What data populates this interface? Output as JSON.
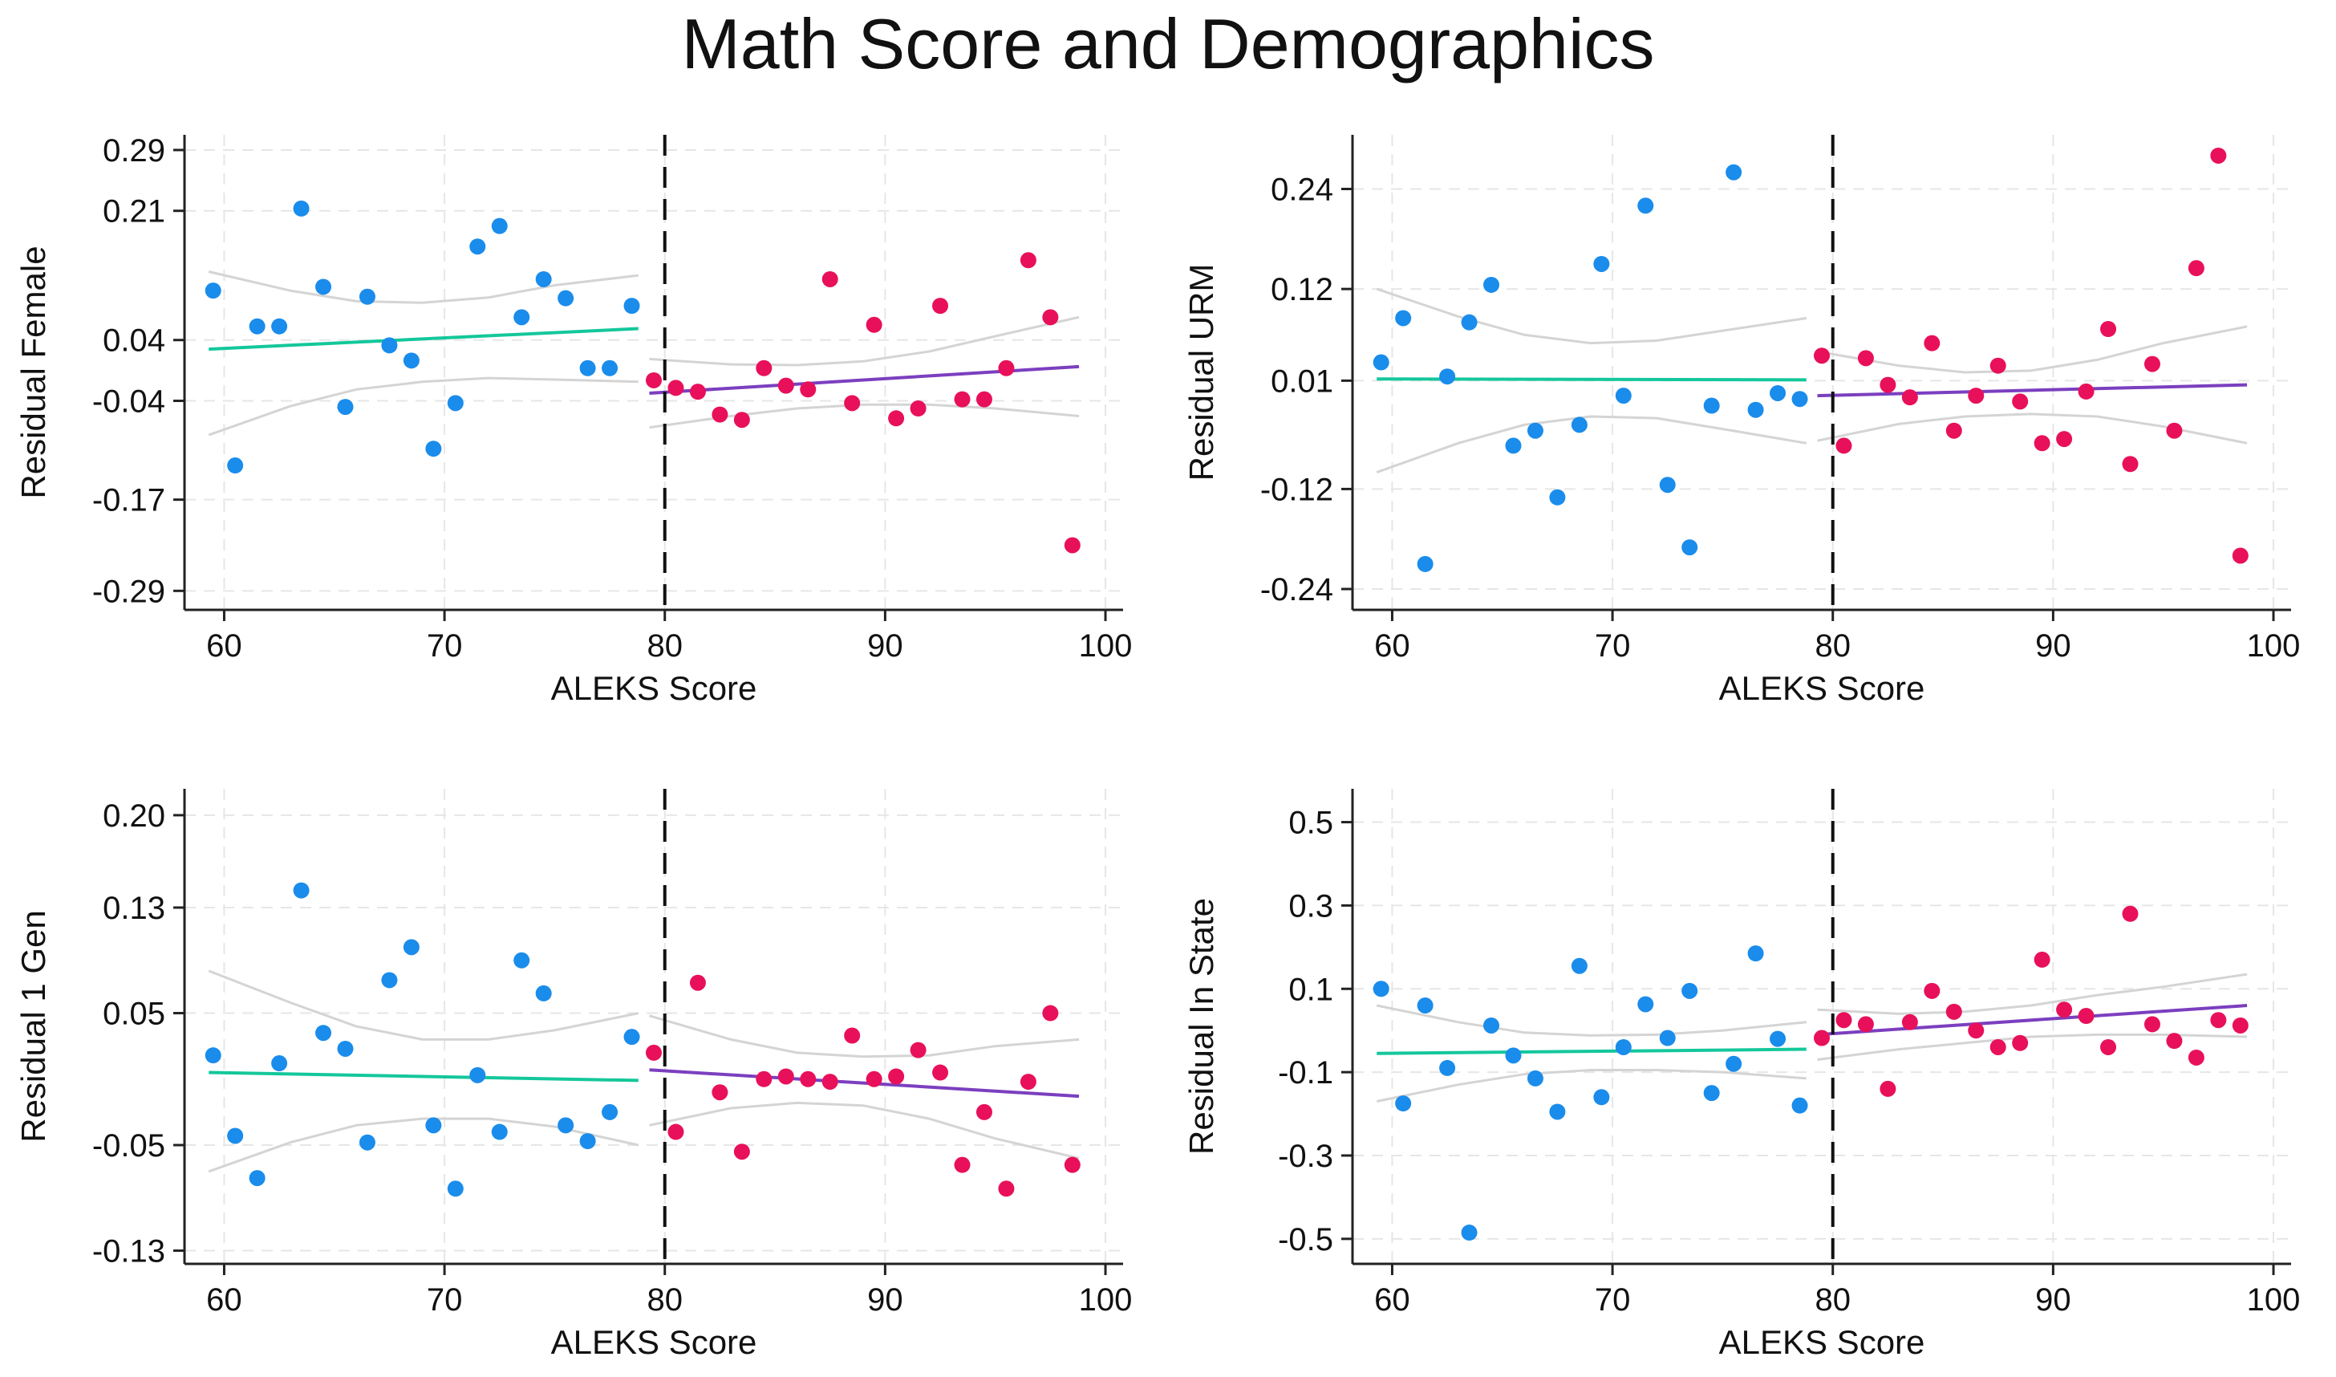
{
  "title": "Math Score and Demographics",
  "colors": {
    "left_points": "#1a8ceb",
    "right_points": "#e8105a",
    "left_fit": "#14c79b",
    "right_fit": "#7b3fbf",
    "ci": "#d4d4d4",
    "grid": "#e6e6e6",
    "axis": "#222222"
  },
  "chart_data": [
    {
      "type": "scatter",
      "title": "",
      "xlabel": "ALEKS Score",
      "ylabel": "Residual Female",
      "xlim": [
        58.2,
        100.8
      ],
      "ylim": [
        -0.315,
        0.31
      ],
      "xticks": [
        60,
        70,
        80,
        90,
        100
      ],
      "xtick_labels": [
        "60",
        "70",
        "80",
        "90",
        "100"
      ],
      "yticks": [
        0.29,
        0.21,
        0.04,
        -0.04,
        -0.17,
        -0.29
      ],
      "ytick_labels": [
        "0.29",
        "0.21",
        "0.04",
        "-0.04",
        "-0.17",
        "-0.29"
      ],
      "grid": true,
      "cutoff": 80,
      "left_points": {
        "x": [
          59.5,
          60.5,
          61.5,
          62.5,
          63.5,
          64.5,
          65.5,
          66.5,
          67.5,
          68.5,
          69.5,
          70.5,
          71.5,
          72.5,
          73.5,
          74.5,
          75.5,
          76.5,
          77.5,
          78.5
        ],
        "y": [
          0.105,
          -0.125,
          0.058,
          0.058,
          0.213,
          0.11,
          -0.048,
          0.097,
          0.033,
          0.013,
          -0.103,
          -0.043,
          0.163,
          0.19,
          0.07,
          0.12,
          0.095,
          0.003,
          0.003,
          0.085
        ]
      },
      "right_points": {
        "x": [
          79.5,
          80.5,
          81.5,
          82.5,
          83.5,
          84.5,
          85.5,
          86.5,
          87.5,
          88.5,
          89.5,
          90.5,
          91.5,
          92.5,
          93.5,
          94.5,
          95.5,
          96.5,
          97.5,
          98.5
        ],
        "y": [
          -0.013,
          -0.023,
          -0.028,
          -0.058,
          -0.065,
          0.003,
          -0.02,
          -0.025,
          0.12,
          -0.043,
          0.06,
          -0.063,
          -0.05,
          0.085,
          -0.038,
          -0.038,
          0.003,
          0.145,
          0.07,
          -0.23
        ]
      },
      "left_fit": {
        "x": [
          59.3,
          78.8
        ],
        "y": [
          0.028,
          0.055
        ]
      },
      "right_fit": {
        "x": [
          79.3,
          98.8
        ],
        "y": [
          -0.03,
          0.005
        ]
      },
      "left_ci_upper": {
        "x": [
          59.3,
          63,
          66,
          69,
          72,
          75,
          78.8
        ],
        "y": [
          0.13,
          0.105,
          0.091,
          0.089,
          0.096,
          0.112,
          0.125
        ]
      },
      "left_ci_lower": {
        "x": [
          59.3,
          63,
          66,
          69,
          72,
          75,
          78.8
        ],
        "y": [
          -0.085,
          -0.047,
          -0.025,
          -0.015,
          -0.01,
          -0.012,
          -0.015
        ]
      },
      "right_ci_upper": {
        "x": [
          79.3,
          83,
          86,
          89,
          92,
          95,
          98.8
        ],
        "y": [
          0.015,
          0.008,
          0.007,
          0.012,
          0.025,
          0.045,
          0.07
        ]
      },
      "right_ci_lower": {
        "x": [
          79.3,
          83,
          86,
          89,
          92,
          95,
          98.8
        ],
        "y": [
          -0.075,
          -0.06,
          -0.05,
          -0.045,
          -0.045,
          -0.05,
          -0.06
        ]
      }
    },
    {
      "type": "scatter",
      "title": "",
      "xlabel": "ALEKS Score",
      "ylabel": "Residual URM",
      "xlim": [
        58.2,
        100.8
      ],
      "ylim": [
        -0.265,
        0.305
      ],
      "xticks": [
        60,
        70,
        80,
        90,
        100
      ],
      "xtick_labels": [
        "60",
        "70",
        "80",
        "90",
        "100"
      ],
      "yticks": [
        0.24,
        0.12,
        0.01,
        -0.12,
        -0.24
      ],
      "ytick_labels": [
        "0.24",
        "0.12",
        "0.01",
        "-0.12",
        "-0.24"
      ],
      "grid": true,
      "cutoff": 80,
      "left_points": {
        "x": [
          59.5,
          60.5,
          61.5,
          62.5,
          63.5,
          64.5,
          65.5,
          66.5,
          67.5,
          68.5,
          69.5,
          70.5,
          71.5,
          72.5,
          73.5,
          74.5,
          75.5,
          76.5,
          77.5,
          78.5
        ],
        "y": [
          0.032,
          0.085,
          -0.21,
          0.015,
          0.08,
          0.125,
          -0.068,
          -0.05,
          -0.13,
          -0.043,
          0.15,
          -0.008,
          0.22,
          -0.115,
          -0.19,
          -0.02,
          0.26,
          -0.025,
          -0.005,
          -0.012
        ]
      },
      "right_points": {
        "x": [
          79.5,
          80.5,
          81.5,
          82.5,
          83.5,
          84.5,
          85.5,
          86.5,
          87.5,
          88.5,
          89.5,
          90.5,
          91.5,
          92.5,
          93.5,
          94.5,
          95.5,
          96.5,
          97.5,
          98.5
        ],
        "y": [
          0.04,
          -0.068,
          0.037,
          0.005,
          -0.01,
          0.055,
          -0.05,
          -0.008,
          0.028,
          -0.015,
          -0.065,
          -0.06,
          -0.003,
          0.072,
          -0.09,
          0.03,
          -0.05,
          0.145,
          0.28,
          -0.2
        ]
      },
      "left_fit": {
        "x": [
          59.3,
          78.8
        ],
        "y": [
          0.012,
          0.011
        ]
      },
      "right_fit": {
        "x": [
          79.3,
          98.8
        ],
        "y": [
          -0.008,
          0.005
        ]
      },
      "left_ci_upper": {
        "x": [
          59.3,
          63,
          66,
          69,
          72,
          75,
          78.8
        ],
        "y": [
          0.12,
          0.087,
          0.065,
          0.055,
          0.058,
          0.07,
          0.085
        ]
      },
      "left_ci_lower": {
        "x": [
          59.3,
          63,
          66,
          69,
          72,
          75,
          78.8
        ],
        "y": [
          -0.1,
          -0.065,
          -0.043,
          -0.033,
          -0.035,
          -0.048,
          -0.065
        ]
      },
      "right_ci_upper": {
        "x": [
          79.3,
          83,
          86,
          89,
          92,
          95,
          98.8
        ],
        "y": [
          0.045,
          0.028,
          0.02,
          0.022,
          0.035,
          0.055,
          0.075
        ]
      },
      "right_ci_lower": {
        "x": [
          79.3,
          83,
          86,
          89,
          92,
          95,
          98.8
        ],
        "y": [
          -0.062,
          -0.042,
          -0.033,
          -0.03,
          -0.033,
          -0.045,
          -0.065
        ]
      }
    },
    {
      "type": "scatter",
      "title": "",
      "xlabel": "ALEKS Score",
      "ylabel": "Residual 1 Gen",
      "xlim": [
        58.2,
        100.8
      ],
      "ylim": [
        -0.14,
        0.22
      ],
      "xticks": [
        60,
        70,
        80,
        90,
        100
      ],
      "xtick_labels": [
        "60",
        "70",
        "80",
        "90",
        "100"
      ],
      "yticks": [
        0.2,
        0.13,
        0.05,
        -0.05,
        -0.13
      ],
      "ytick_labels": [
        "0.20",
        "0.13",
        "0.05",
        "-0.05",
        "-0.13"
      ],
      "grid": true,
      "cutoff": 80,
      "left_points": {
        "x": [
          59.5,
          60.5,
          61.5,
          62.5,
          63.5,
          64.5,
          65.5,
          66.5,
          67.5,
          68.5,
          69.5,
          70.5,
          71.5,
          72.5,
          73.5,
          74.5,
          75.5,
          76.5,
          77.5,
          78.5
        ],
        "y": [
          0.018,
          -0.043,
          -0.075,
          0.012,
          0.143,
          0.035,
          0.023,
          -0.048,
          0.075,
          0.1,
          -0.035,
          -0.083,
          0.003,
          -0.04,
          0.09,
          0.065,
          -0.035,
          -0.047,
          -0.025,
          0.032
        ]
      },
      "right_points": {
        "x": [
          79.5,
          80.5,
          81.5,
          82.5,
          83.5,
          84.5,
          85.5,
          86.5,
          87.5,
          88.5,
          89.5,
          90.5,
          91.5,
          92.5,
          93.5,
          94.5,
          95.5,
          96.5,
          97.5,
          98.5
        ],
        "y": [
          0.02,
          -0.04,
          0.073,
          -0.01,
          -0.055,
          0.0,
          0.002,
          0.0,
          -0.002,
          0.033,
          0.0,
          0.002,
          0.022,
          0.005,
          -0.065,
          -0.025,
          -0.083,
          -0.002,
          0.05,
          -0.065
        ]
      },
      "left_fit": {
        "x": [
          59.3,
          78.8
        ],
        "y": [
          0.005,
          -0.001
        ]
      },
      "right_fit": {
        "x": [
          79.3,
          98.8
        ],
        "y": [
          0.007,
          -0.013
        ]
      },
      "left_ci_upper": {
        "x": [
          59.3,
          63,
          66,
          69,
          72,
          75,
          78.8
        ],
        "y": [
          0.082,
          0.058,
          0.04,
          0.03,
          0.03,
          0.037,
          0.05
        ]
      },
      "left_ci_lower": {
        "x": [
          59.3,
          63,
          66,
          69,
          72,
          75,
          78.8
        ],
        "y": [
          -0.07,
          -0.048,
          -0.035,
          -0.03,
          -0.03,
          -0.036,
          -0.05
        ]
      },
      "right_ci_upper": {
        "x": [
          79.3,
          83,
          86,
          89,
          92,
          95,
          98.8
        ],
        "y": [
          0.048,
          0.03,
          0.02,
          0.017,
          0.018,
          0.025,
          0.03
        ]
      },
      "right_ci_lower": {
        "x": [
          79.3,
          83,
          86,
          89,
          92,
          95,
          98.8
        ],
        "y": [
          -0.035,
          -0.022,
          -0.018,
          -0.02,
          -0.03,
          -0.045,
          -0.06
        ]
      }
    },
    {
      "type": "scatter",
      "title": "",
      "xlabel": "ALEKS Score",
      "ylabel": "Residual In State",
      "xlim": [
        58.2,
        100.8
      ],
      "ylim": [
        -0.56,
        0.58
      ],
      "xticks": [
        60,
        70,
        80,
        90,
        100
      ],
      "xtick_labels": [
        "60",
        "70",
        "80",
        "90",
        "100"
      ],
      "yticks": [
        0.5,
        0.3,
        0.1,
        -0.1,
        -0.3,
        -0.5
      ],
      "ytick_labels": [
        "0.5",
        "0.3",
        "0.1",
        "-0.1",
        "-0.3",
        "-0.5"
      ],
      "grid": true,
      "cutoff": 80,
      "left_points": {
        "x": [
          59.5,
          60.5,
          61.5,
          62.5,
          63.5,
          64.5,
          65.5,
          66.5,
          67.5,
          68.5,
          69.5,
          70.5,
          71.5,
          72.5,
          73.5,
          74.5,
          75.5,
          76.5,
          77.5,
          78.5
        ],
        "y": [
          0.1,
          -0.175,
          0.06,
          -0.09,
          -0.485,
          0.012,
          -0.06,
          -0.115,
          -0.195,
          0.155,
          -0.16,
          -0.04,
          0.063,
          -0.018,
          0.095,
          -0.15,
          -0.08,
          0.185,
          -0.02,
          -0.18
        ]
      },
      "right_points": {
        "x": [
          79.5,
          80.5,
          81.5,
          82.5,
          83.5,
          84.5,
          85.5,
          86.5,
          87.5,
          88.5,
          89.5,
          90.5,
          91.5,
          92.5,
          93.5,
          94.5,
          95.5,
          96.5,
          97.5,
          98.5
        ],
        "y": [
          -0.018,
          0.025,
          0.015,
          -0.14,
          0.02,
          0.095,
          0.045,
          0.0,
          -0.04,
          -0.03,
          0.17,
          0.05,
          0.035,
          -0.04,
          0.28,
          0.015,
          -0.025,
          -0.065,
          0.025,
          0.012
        ]
      },
      "left_fit": {
        "x": [
          59.3,
          78.8
        ],
        "y": [
          -0.055,
          -0.045
        ]
      },
      "right_fit": {
        "x": [
          79.3,
          98.8
        ],
        "y": [
          -0.01,
          0.06
        ]
      },
      "left_ci_upper": {
        "x": [
          59.3,
          63,
          66,
          69,
          72,
          75,
          78.8
        ],
        "y": [
          0.06,
          0.02,
          -0.005,
          -0.012,
          -0.01,
          0.0,
          0.02
        ]
      },
      "left_ci_lower": {
        "x": [
          59.3,
          63,
          66,
          69,
          72,
          75,
          78.8
        ],
        "y": [
          -0.17,
          -0.13,
          -0.105,
          -0.095,
          -0.095,
          -0.1,
          -0.115
        ]
      },
      "right_ci_upper": {
        "x": [
          79.3,
          83,
          86,
          89,
          92,
          95,
          98.8
        ],
        "y": [
          0.05,
          0.04,
          0.045,
          0.06,
          0.085,
          0.105,
          0.135
        ]
      },
      "right_ci_lower": {
        "x": [
          79.3,
          83,
          86,
          89,
          92,
          95,
          98.8
        ],
        "y": [
          -0.07,
          -0.045,
          -0.03,
          -0.015,
          -0.01,
          -0.01,
          -0.015
        ]
      }
    }
  ]
}
